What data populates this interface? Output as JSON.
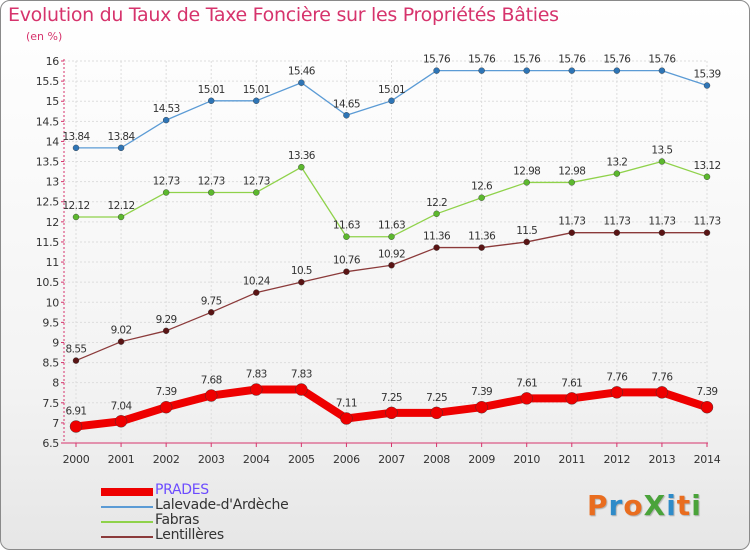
{
  "title": "Evolution du Taux de Taxe Foncière sur les Propriétés Bâties",
  "unit": "(en %)",
  "logo": {
    "text": "ProXiti",
    "colors": [
      "#e96d1f",
      "#2e8bc9",
      "#e96d1f",
      "#4aa33a",
      "#2e8bc9",
      "#e96d1f",
      "#4aa33a"
    ]
  },
  "chart_data": {
    "type": "line",
    "title": "Evolution du Taux de Taxe Foncière sur les Propriétés Bâties",
    "ylabel": "(en %)",
    "xlabel": "",
    "ylim": [
      6.5,
      16
    ],
    "yticks": [
      "6.5",
      "7",
      "7.5",
      "8",
      "8.5",
      "9",
      "9.5",
      "10",
      "10.5",
      "11",
      "11.5",
      "12",
      "12.5",
      "13",
      "13.5",
      "14",
      "14.5",
      "15",
      "15.5",
      "16"
    ],
    "x": [
      "2000",
      "2001",
      "2002",
      "2003",
      "2004",
      "2005",
      "2006",
      "2007",
      "2008",
      "2009",
      "2010",
      "2011",
      "2012",
      "2013",
      "2014"
    ],
    "grid": true,
    "legend_position": "bottom-left",
    "series": [
      {
        "name": "PRADES",
        "color": "#ee0000",
        "marker": "#ee0000",
        "width": 8,
        "radius": 6,
        "values": [
          6.91,
          7.04,
          7.39,
          7.68,
          7.83,
          7.83,
          7.11,
          7.25,
          7.25,
          7.39,
          7.61,
          7.61,
          7.76,
          7.76,
          7.39
        ],
        "labels": [
          "6.91",
          "7.04",
          "7.39",
          "7.68",
          "7.83",
          "7.83",
          "7.11",
          "7.25",
          "7.25",
          "7.39",
          "7.61",
          "7.61",
          "7.76",
          "7.76",
          "7.39"
        ]
      },
      {
        "name": "Lalevade-d'Ardèche",
        "color": "#5b9bd5",
        "marker": "#2e75b6",
        "width": 1.3,
        "radius": 3,
        "values": [
          13.84,
          13.84,
          14.53,
          15.01,
          15.01,
          15.46,
          14.65,
          15.01,
          15.76,
          15.76,
          15.76,
          15.76,
          15.76,
          15.76,
          15.39
        ],
        "labels": [
          "13.84",
          "13.84",
          "14.53",
          "15.01",
          "15.01",
          "15.46",
          "14.65",
          "15.01",
          "15.76",
          "15.76",
          "15.76",
          "15.76",
          "15.76",
          "15.76",
          "15.39"
        ]
      },
      {
        "name": "Fabras",
        "color": "#8fd24a",
        "marker": "#5cb82e",
        "width": 1.3,
        "radius": 3,
        "values": [
          12.12,
          12.12,
          12.73,
          12.73,
          12.73,
          13.36,
          11.63,
          11.63,
          12.2,
          12.6,
          12.98,
          12.98,
          13.2,
          13.5,
          13.12
        ],
        "labels": [
          "12.12",
          "12.12",
          "12.73",
          "12.73",
          "12.73",
          "13.36",
          "11.63",
          "11.63",
          "12.2",
          "12.6",
          "12.98",
          "12.98",
          "13.2",
          "13.5",
          "13.12"
        ]
      },
      {
        "name": "Lentillères",
        "color": "#8b3a3a",
        "marker": "#5a1414",
        "width": 1.3,
        "radius": 3,
        "values": [
          8.55,
          9.02,
          9.29,
          9.75,
          10.24,
          10.5,
          10.76,
          10.92,
          11.36,
          11.36,
          11.5,
          11.73,
          11.73,
          11.73,
          11.73
        ],
        "labels": [
          "8.55",
          "9.02",
          "9.29",
          "9.75",
          "10.24",
          "10.5",
          "10.76",
          "10.92",
          "11.36",
          "11.36",
          "11.5",
          "11.73",
          "11.73",
          "11.73",
          "11.73"
        ]
      }
    ]
  }
}
